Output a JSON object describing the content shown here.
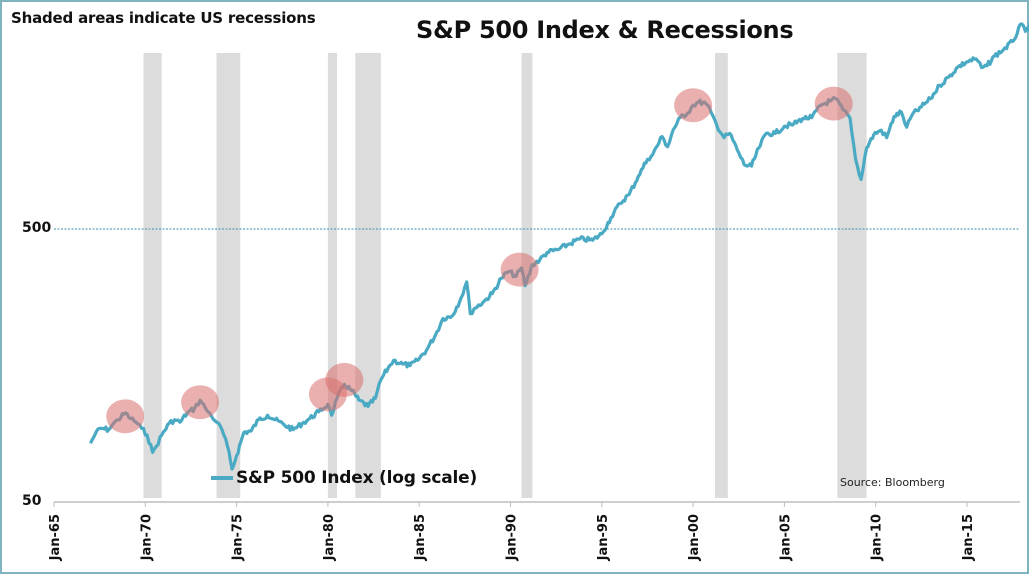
{
  "chart_data": {
    "type": "line",
    "title": "S&P 500 Index & Recessions",
    "subtitle": "Shaded areas indicate US recessions",
    "source": "Source:  Bloomberg",
    "xlabel": "",
    "ylabel": "",
    "yscale": "log",
    "ylim": [
      50,
      2950
    ],
    "xlim": [
      1965.0,
      2019.0
    ],
    "y_ticks": [
      50,
      500
    ],
    "y_tick_labels": [
      "50",
      "500"
    ],
    "y_gridline": {
      "value": 500,
      "style": "dashed"
    },
    "x_ticks": [
      1965,
      1970,
      1975,
      1980,
      1985,
      1990,
      1995,
      2000,
      2005,
      2010,
      2015
    ],
    "x_tick_labels": [
      "Jan-65",
      "Jan-70",
      "Jan-75",
      "Jan-80",
      "Jan-85",
      "Jan-90",
      "Jan-95",
      "Jan-00",
      "Jan-05",
      "Jan-10",
      "Jan-15"
    ],
    "legend": {
      "position": "bottom-left",
      "entries": [
        "S&P 500 Index (log scale)"
      ]
    },
    "colors": {
      "line": "#4aaac4",
      "recession": "#dcdcdc",
      "highlight": "#d9706e",
      "gridline": "#3a8fa8"
    },
    "recessions": [
      {
        "start": 1969.9,
        "end": 1970.9
      },
      {
        "start": 1973.9,
        "end": 1975.2
      },
      {
        "start": 1980.0,
        "end": 1980.5
      },
      {
        "start": 1981.5,
        "end": 1982.9
      },
      {
        "start": 1990.6,
        "end": 1991.2
      },
      {
        "start": 2001.2,
        "end": 2001.9
      },
      {
        "start": 2007.9,
        "end": 2009.5
      }
    ],
    "peak_highlights": [
      {
        "x": 1968.9,
        "y": 103
      },
      {
        "x": 1973.0,
        "y": 116
      },
      {
        "x": 1980.0,
        "y": 124
      },
      {
        "x": 1980.9,
        "y": 140
      },
      {
        "x": 1990.5,
        "y": 355
      },
      {
        "x": 2000.0,
        "y": 1420
      },
      {
        "x": 2007.7,
        "y": 1440
      }
    ],
    "series": [
      {
        "name": "S&P 500 Index (log scale)",
        "x": [
          1967.0,
          1967.3,
          1967.6,
          1968.0,
          1968.2,
          1968.5,
          1968.9,
          1969.2,
          1969.5,
          1969.8,
          1970.1,
          1970.4,
          1970.6,
          1970.9,
          1971.3,
          1971.6,
          1971.9,
          1972.3,
          1972.7,
          1973.0,
          1973.3,
          1973.6,
          1973.9,
          1974.2,
          1974.5,
          1974.75,
          1975.0,
          1975.4,
          1975.8,
          1976.2,
          1976.7,
          1977.1,
          1977.6,
          1978.1,
          1978.6,
          1979.0,
          1979.5,
          1980.0,
          1980.2,
          1980.5,
          1980.9,
          1981.3,
          1981.7,
          1982.2,
          1982.6,
          1982.9,
          1983.3,
          1983.6,
          1984.1,
          1984.5,
          1984.9,
          1985.4,
          1985.9,
          1986.3,
          1986.8,
          1987.3,
          1987.6,
          1987.8,
          1988.0,
          1988.5,
          1989.0,
          1989.5,
          1989.9,
          1990.3,
          1990.6,
          1990.8,
          1991.2,
          1991.6,
          1992.0,
          1992.6,
          1993.2,
          1993.8,
          1994.5,
          1995.0,
          1995.5,
          1996.0,
          1996.5,
          1997.0,
          1997.5,
          1997.8,
          1998.3,
          1998.6,
          1998.9,
          1999.3,
          1999.7,
          2000.0,
          2000.3,
          2000.7,
          2001.0,
          2001.3,
          2001.7,
          2002.0,
          2002.5,
          2002.8,
          2003.2,
          2003.6,
          2004.0,
          2004.5,
          2005.0,
          2005.5,
          2006.0,
          2006.5,
          2007.0,
          2007.5,
          2007.8,
          2008.2,
          2008.6,
          2008.9,
          2009.2,
          2009.5,
          2009.9,
          2010.3,
          2010.6,
          2011.0,
          2011.4,
          2011.7,
          2012.0,
          2012.5,
          2013.0,
          2013.5,
          2014.0,
          2014.5,
          2015.0,
          2015.5,
          2015.8,
          2016.1,
          2016.5,
          2017.0,
          2017.5,
          2018.0,
          2018.2,
          2018.6,
          2018.9
        ],
        "values": [
          82,
          90,
          93,
          92,
          96,
          100,
          106,
          101,
          98,
          93,
          88,
          76,
          80,
          88,
          97,
          100,
          98,
          106,
          110,
          118,
          110,
          104,
          98,
          92,
          80,
          66,
          74,
          90,
          91,
          100,
          104,
          100,
          96,
          92,
          97,
          101,
          107,
          114,
          104,
          120,
          135,
          128,
          118,
          112,
          120,
          140,
          155,
          165,
          160,
          158,
          165,
          180,
          205,
          235,
          240,
          280,
          320,
          245,
          255,
          270,
          290,
          330,
          350,
          335,
          360,
          310,
          370,
          385,
          410,
          420,
          440,
          460,
          455,
          480,
          550,
          620,
          670,
          780,
          900,
          940,
          1090,
          1000,
          1150,
          1280,
          1330,
          1420,
          1460,
          1440,
          1330,
          1200,
          1080,
          1120,
          950,
          860,
          850,
          990,
          1120,
          1120,
          1190,
          1210,
          1270,
          1280,
          1420,
          1470,
          1500,
          1370,
          1270,
          900,
          760,
          990,
          1110,
          1150,
          1080,
          1290,
          1340,
          1180,
          1310,
          1400,
          1500,
          1680,
          1800,
          1960,
          2050,
          2100,
          1950,
          1980,
          2150,
          2270,
          2430,
          2820,
          2650,
          2880,
          2500
        ]
      }
    ]
  }
}
